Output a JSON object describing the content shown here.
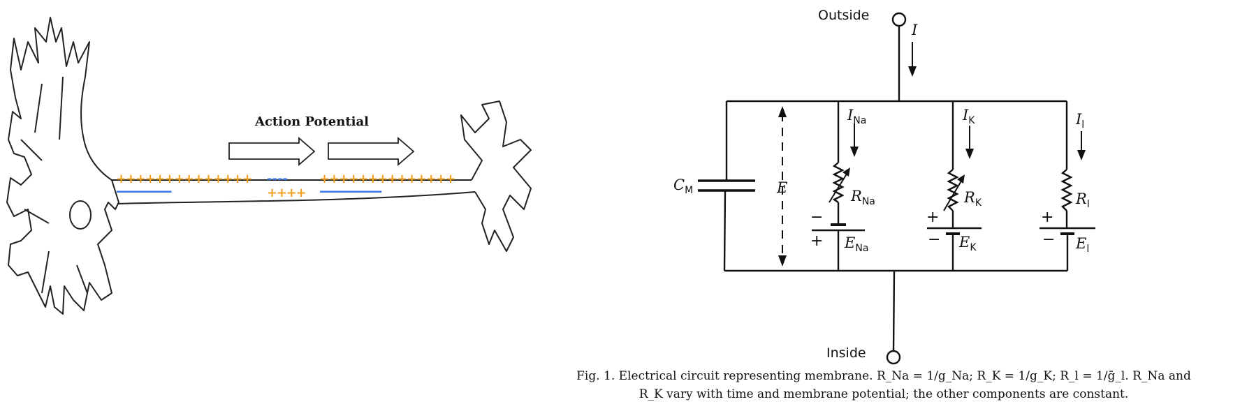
{
  "neuron": {
    "action_label": "Action Potential",
    "top_charges_left": "++++++++++++++",
    "top_charges_mid": "----",
    "top_charges_right": "++++++++++++++",
    "bottom_charges_left": "----------------",
    "bottom_charges_mid": "++++",
    "bottom_charges_right": "------------------",
    "colors": {
      "positive": "#f0a020",
      "negative": "#3b78e7",
      "outline": "#222222"
    }
  },
  "circuit": {
    "outside_label": "Outside",
    "inside_label": "Inside",
    "current_total": "I",
    "capacitor_label": "C",
    "capacitor_sub": "M",
    "voltage_label": "E",
    "branches": [
      {
        "current": "I",
        "current_sub": "Na",
        "resistor": "R",
        "resistor_sub": "Na",
        "battery": "E",
        "battery_sub": "Na",
        "top_sign": "−",
        "bottom_sign": "+"
      },
      {
        "current": "I",
        "current_sub": "K",
        "resistor": "R",
        "resistor_sub": "K",
        "battery": "E",
        "battery_sub": "K",
        "top_sign": "+",
        "bottom_sign": "−"
      },
      {
        "current": "I",
        "current_sub": "l",
        "resistor": "R",
        "resistor_sub": "l",
        "battery": "E",
        "battery_sub": "l",
        "top_sign": "+",
        "bottom_sign": "−"
      }
    ]
  },
  "caption": {
    "line1": "Fig. 1.  Electrical circuit representing membrane.  R_Na = 1/g_Na;  R_K = 1/g_K;  R_l = 1/ḡ_l.  R_Na and",
    "line2": "R_K vary with time and membrane potential; the other components are constant."
  }
}
